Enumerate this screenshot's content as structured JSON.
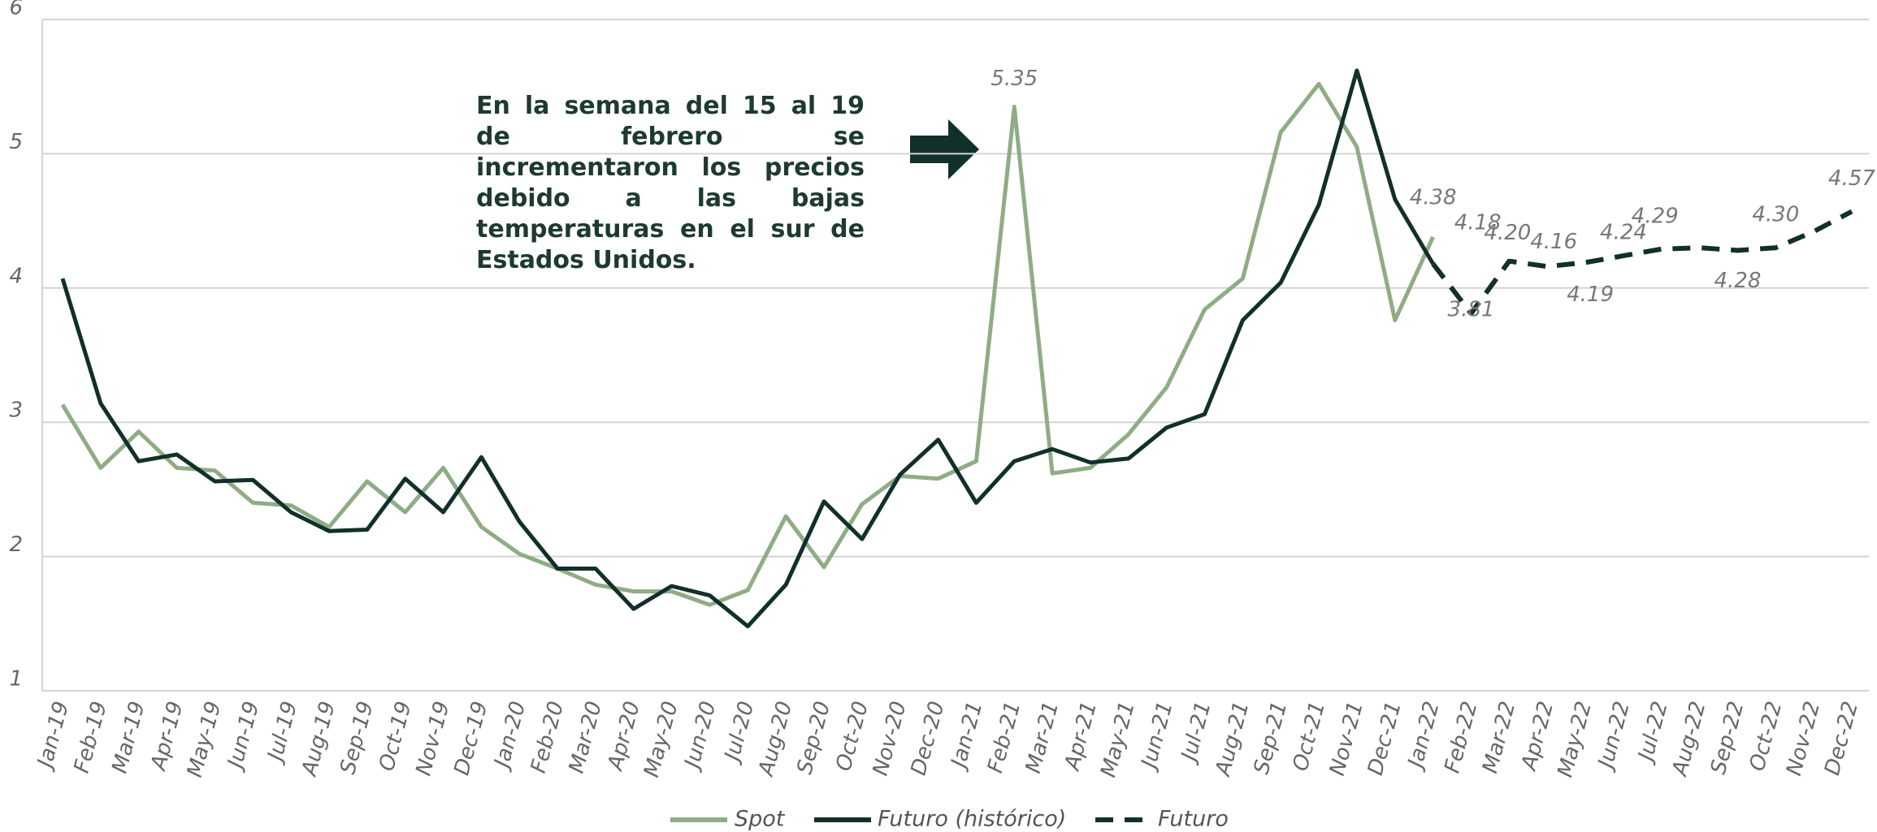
{
  "chart_data": {
    "type": "line",
    "annotation": "En la semana del 15 al 19 de febrero se incrementaron los precios debido a las bajas temperaturas en el sur de Estados Unidos.",
    "categories": [
      "Jan-19",
      "Feb-19",
      "Mar-19",
      "Apr-19",
      "May-19",
      "Jun-19",
      "Jul-19",
      "Aug-19",
      "Sep-19",
      "Oct-19",
      "Nov-19",
      "Dec-19",
      "Jan-20",
      "Feb-20",
      "Mar-20",
      "Apr-20",
      "May-20",
      "Jun-20",
      "Jul-20",
      "Aug-20",
      "Sep-20",
      "Oct-20",
      "Nov-20",
      "Dec-20",
      "Jan-21",
      "Feb-21",
      "Mar-21",
      "Apr-21",
      "May-21",
      "Jun-21",
      "Jul-21",
      "Aug-21",
      "Sep-21",
      "Oct-21",
      "Nov-21",
      "Dec-21",
      "Jan-22",
      "Feb-22",
      "Mar-22",
      "Apr-22",
      "May-22",
      "Jun-22",
      "Jul-22",
      "Aug-22",
      "Sep-22",
      "Oct-22",
      "Nov-22",
      "Dec-22"
    ],
    "series": [
      {
        "name": "Spot",
        "color": "#8fac85",
        "dashed": false,
        "values": [
          3.13,
          2.66,
          2.93,
          2.66,
          2.64,
          2.4,
          2.38,
          2.22,
          2.56,
          2.33,
          2.66,
          2.22,
          2.02,
          1.91,
          1.79,
          1.74,
          1.74,
          1.64,
          1.75,
          2.3,
          1.92,
          2.39,
          2.6,
          2.58,
          2.71,
          5.35,
          2.62,
          2.66,
          2.91,
          3.26,
          3.84,
          4.07,
          5.16,
          5.52,
          5.05,
          3.76,
          4.38,
          null,
          null,
          null,
          null,
          null,
          null,
          null,
          null,
          null,
          null,
          null
        ],
        "value_labels": [
          null,
          null,
          null,
          null,
          null,
          null,
          null,
          null,
          null,
          null,
          null,
          null,
          null,
          null,
          null,
          null,
          null,
          null,
          null,
          null,
          null,
          null,
          null,
          null,
          null,
          "5.35",
          null,
          null,
          null,
          null,
          null,
          null,
          null,
          null,
          null,
          null,
          "4.38",
          null,
          null,
          null,
          null,
          null,
          null,
          null,
          null,
          null,
          null,
          null
        ]
      },
      {
        "name": "Futuro (histórico)",
        "color": "#11302a",
        "dashed": false,
        "values": [
          4.07,
          3.14,
          2.71,
          2.76,
          2.56,
          2.57,
          2.33,
          2.19,
          2.2,
          2.58,
          2.33,
          2.74,
          2.26,
          1.91,
          1.91,
          1.61,
          1.78,
          1.71,
          1.48,
          1.79,
          2.41,
          2.13,
          2.61,
          2.87,
          2.4,
          2.71,
          2.8,
          2.7,
          2.73,
          2.96,
          3.06,
          3.76,
          4.04,
          4.62,
          5.62,
          4.66,
          4.18,
          null,
          null,
          null,
          null,
          null,
          null,
          null,
          null,
          null,
          null,
          null
        ],
        "value_labels": [
          null,
          null,
          null,
          null,
          null,
          null,
          null,
          null,
          null,
          null,
          null,
          null,
          null,
          null,
          null,
          null,
          null,
          null,
          null,
          null,
          null,
          null,
          null,
          null,
          null,
          null,
          null,
          null,
          null,
          null,
          null,
          null,
          null,
          null,
          null,
          null,
          "4.18",
          null,
          null,
          null,
          null,
          null,
          null,
          null,
          null,
          null,
          null,
          null
        ]
      },
      {
        "name": "Futuro",
        "color": "#11302a",
        "dashed": true,
        "values": [
          null,
          null,
          null,
          null,
          null,
          null,
          null,
          null,
          null,
          null,
          null,
          null,
          null,
          null,
          null,
          null,
          null,
          null,
          null,
          null,
          null,
          null,
          null,
          null,
          null,
          null,
          null,
          null,
          null,
          null,
          null,
          null,
          null,
          null,
          null,
          null,
          4.18,
          3.81,
          4.2,
          4.16,
          4.19,
          4.24,
          4.29,
          4.3,
          4.28,
          4.3,
          4.42,
          4.57
        ],
        "value_labels": [
          null,
          null,
          null,
          null,
          null,
          null,
          null,
          null,
          null,
          null,
          null,
          null,
          null,
          null,
          null,
          null,
          null,
          null,
          null,
          null,
          null,
          null,
          null,
          null,
          null,
          null,
          null,
          null,
          null,
          null,
          null,
          null,
          null,
          null,
          null,
          null,
          null,
          "3.81",
          "4.20",
          "4.16",
          "4.19",
          "4.24",
          "4.29",
          null,
          "4.28",
          "4.30",
          null,
          "4.57"
        ]
      }
    ],
    "ylim": [
      1,
      6
    ],
    "yticks": [
      1,
      2,
      3,
      4,
      5,
      6
    ],
    "grid": true,
    "legend": "bottom"
  }
}
